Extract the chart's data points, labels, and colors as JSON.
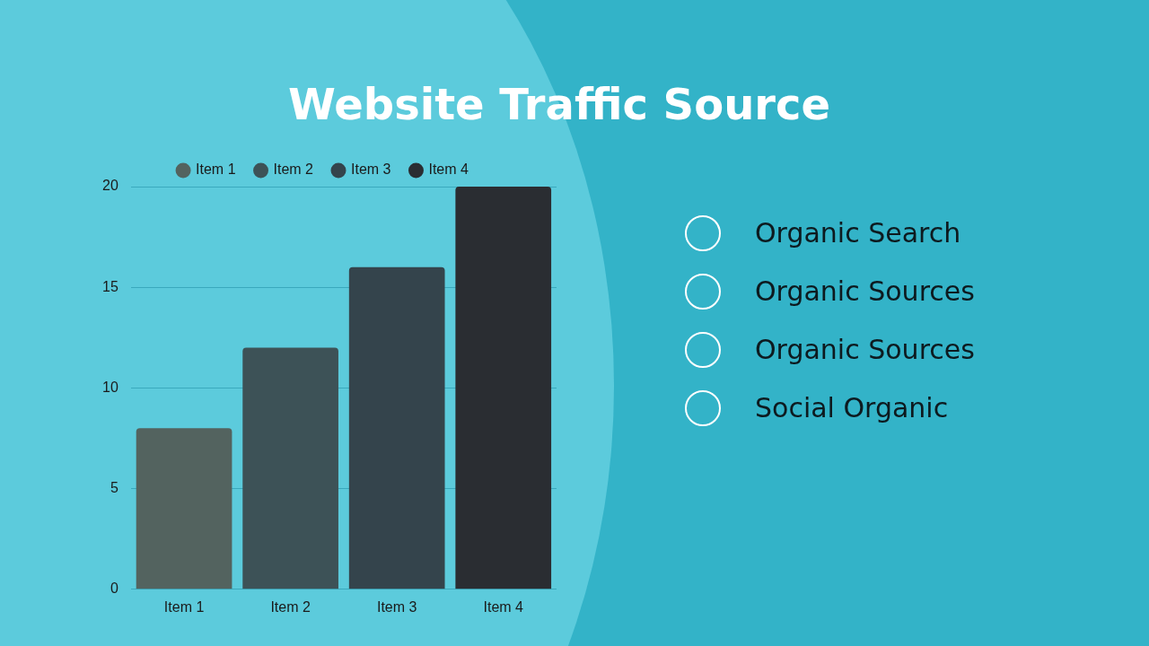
{
  "chart_data": {
    "type": "bar",
    "title": "Website Traffic Source",
    "categories": [
      "Item 1",
      "Item 2",
      "Item 3",
      "Item 4"
    ],
    "series": [
      {
        "name": "Item 1",
        "color": "#53635f",
        "values": [
          8,
          null,
          null,
          null
        ]
      },
      {
        "name": "Item 2",
        "color": "#3d5257",
        "values": [
          null,
          12,
          null,
          null
        ]
      },
      {
        "name": "Item 3",
        "color": "#34444c",
        "values": [
          null,
          null,
          16,
          null
        ]
      },
      {
        "name": "Item 4",
        "color": "#2a2d32",
        "values": [
          null,
          null,
          null,
          20
        ]
      }
    ],
    "ylim": [
      0,
      20
    ],
    "yticks": [
      0,
      5,
      10,
      15,
      20
    ],
    "grid": "y",
    "legend": "top",
    "annotations": [
      "Organic Search",
      "Organic Sources",
      "Organic Sources",
      "Social Organic"
    ]
  }
}
